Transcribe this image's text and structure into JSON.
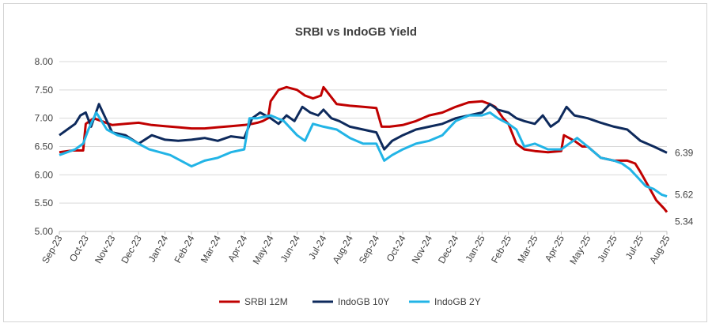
{
  "chart_data": {
    "type": "line",
    "title": "SRBI vs IndoGB Yield",
    "xlabel": "",
    "ylabel": "",
    "ylim": [
      5.0,
      8.0
    ],
    "y_ticks": [
      "5.00",
      "5.50",
      "6.00",
      "6.50",
      "7.00",
      "7.50",
      "8.00"
    ],
    "categories": [
      "Sep-23",
      "Oct-23",
      "Nov-23",
      "Dec-23",
      "Jan-24",
      "Feb-24",
      "Mar-24",
      "Apr-24",
      "May-24",
      "Jun-24",
      "Jul-24",
      "Aug-24",
      "Sep-24",
      "Oct-24",
      "Nov-24",
      "Dec-24",
      "Jan-25",
      "Feb-25",
      "Mar-25",
      "Apr-25",
      "May-25",
      "Jun-25",
      "Jul-25",
      "Aug-25"
    ],
    "grid": "horizontal",
    "legend_position": "bottom",
    "series": [
      {
        "name": "SRBI 12M",
        "color": "#c00000",
        "end_label": "5.34",
        "x": [
          0,
          0.5,
          0.9,
          1.0,
          1.3,
          1.6,
          2.0,
          2.5,
          3.0,
          3.5,
          4.0,
          4.5,
          5.0,
          5.5,
          6.0,
          6.5,
          7.0,
          7.3,
          7.5,
          7.7,
          7.9,
          8.0,
          8.3,
          8.6,
          9.0,
          9.3,
          9.6,
          9.9,
          10.0,
          10.5,
          11.0,
          11.5,
          12.0,
          12.2,
          12.5,
          13.0,
          13.5,
          14.0,
          14.5,
          15.0,
          15.5,
          16.0,
          16.3,
          16.5,
          16.8,
          17.0,
          17.3,
          17.6,
          18.0,
          18.5,
          19.0,
          19.1,
          19.5,
          19.8,
          20.0,
          20.5,
          21.0,
          21.5,
          21.8,
          22.0,
          22.3,
          22.6,
          22.9,
          23.0
        ],
        "values": [
          6.4,
          6.43,
          6.43,
          6.9,
          7.0,
          6.95,
          6.88,
          6.9,
          6.92,
          6.88,
          6.86,
          6.84,
          6.82,
          6.82,
          6.84,
          6.86,
          6.88,
          6.9,
          6.92,
          6.95,
          7.0,
          7.3,
          7.5,
          7.55,
          7.5,
          7.4,
          7.35,
          7.4,
          7.55,
          7.25,
          7.22,
          7.2,
          7.18,
          6.85,
          6.85,
          6.88,
          6.95,
          7.05,
          7.1,
          7.2,
          7.28,
          7.3,
          7.25,
          7.2,
          7.0,
          6.9,
          6.55,
          6.45,
          6.42,
          6.4,
          6.42,
          6.7,
          6.6,
          6.5,
          6.5,
          6.3,
          6.25,
          6.25,
          6.2,
          6.05,
          5.8,
          5.55,
          5.4,
          5.34
        ]
      },
      {
        "name": "IndoGB 10Y",
        "color": "#0e2a5c",
        "end_label": "6.39",
        "x": [
          0,
          0.3,
          0.6,
          0.8,
          1.0,
          1.2,
          1.5,
          2.0,
          2.5,
          3.0,
          3.5,
          4.0,
          4.5,
          5.0,
          5.5,
          6.0,
          6.5,
          7.0,
          7.3,
          7.6,
          8.0,
          8.3,
          8.6,
          8.9,
          9.2,
          9.5,
          9.8,
          10.0,
          10.3,
          10.6,
          11.0,
          11.5,
          12.0,
          12.3,
          12.6,
          13.0,
          13.5,
          14.0,
          14.5,
          15.0,
          15.5,
          16.0,
          16.3,
          16.6,
          17.0,
          17.3,
          17.6,
          18.0,
          18.3,
          18.6,
          18.9,
          19.2,
          19.5,
          20.0,
          20.5,
          21.0,
          21.5,
          22.0,
          22.5,
          23.0
        ],
        "values": [
          6.7,
          6.8,
          6.9,
          7.05,
          7.1,
          6.85,
          7.25,
          6.75,
          6.7,
          6.55,
          6.7,
          6.62,
          6.6,
          6.62,
          6.65,
          6.6,
          6.68,
          6.65,
          7.0,
          7.1,
          7.0,
          6.9,
          7.05,
          6.95,
          7.2,
          7.1,
          7.05,
          7.15,
          7.0,
          6.95,
          6.85,
          6.8,
          6.75,
          6.45,
          6.6,
          6.7,
          6.8,
          6.85,
          6.9,
          7.0,
          7.05,
          7.1,
          7.25,
          7.15,
          7.1,
          7.0,
          6.95,
          6.9,
          7.05,
          6.85,
          6.95,
          7.2,
          7.05,
          7.0,
          6.92,
          6.85,
          6.8,
          6.6,
          6.5,
          6.39
        ]
      },
      {
        "name": "IndoGB 2Y",
        "color": "#22b4e6",
        "end_label": "5.62",
        "x": [
          0,
          0.3,
          0.6,
          0.9,
          1.1,
          1.4,
          1.8,
          2.2,
          2.6,
          3.0,
          3.4,
          3.8,
          4.2,
          4.6,
          5.0,
          5.5,
          6.0,
          6.5,
          7.0,
          7.2,
          7.5,
          8.0,
          8.5,
          9.0,
          9.3,
          9.6,
          10.0,
          10.5,
          11.0,
          11.5,
          12.0,
          12.3,
          12.6,
          13.0,
          13.5,
          14.0,
          14.5,
          15.0,
          15.5,
          16.0,
          16.3,
          16.6,
          17.0,
          17.3,
          17.6,
          18.0,
          18.5,
          19.0,
          19.3,
          19.6,
          20.0,
          20.5,
          21.0,
          21.3,
          21.6,
          21.9,
          22.2,
          22.5,
          22.8,
          23.0
        ],
        "values": [
          6.35,
          6.4,
          6.45,
          6.55,
          6.8,
          7.1,
          6.8,
          6.7,
          6.65,
          6.55,
          6.45,
          6.4,
          6.35,
          6.25,
          6.15,
          6.25,
          6.3,
          6.4,
          6.45,
          7.0,
          7.0,
          7.05,
          6.95,
          6.7,
          6.6,
          6.9,
          6.85,
          6.8,
          6.65,
          6.55,
          6.55,
          6.25,
          6.35,
          6.45,
          6.55,
          6.6,
          6.7,
          6.95,
          7.05,
          7.05,
          7.1,
          7.0,
          6.9,
          6.8,
          6.5,
          6.55,
          6.45,
          6.45,
          6.55,
          6.65,
          6.5,
          6.3,
          6.25,
          6.2,
          6.1,
          5.95,
          5.8,
          5.75,
          5.65,
          5.62
        ]
      }
    ]
  }
}
